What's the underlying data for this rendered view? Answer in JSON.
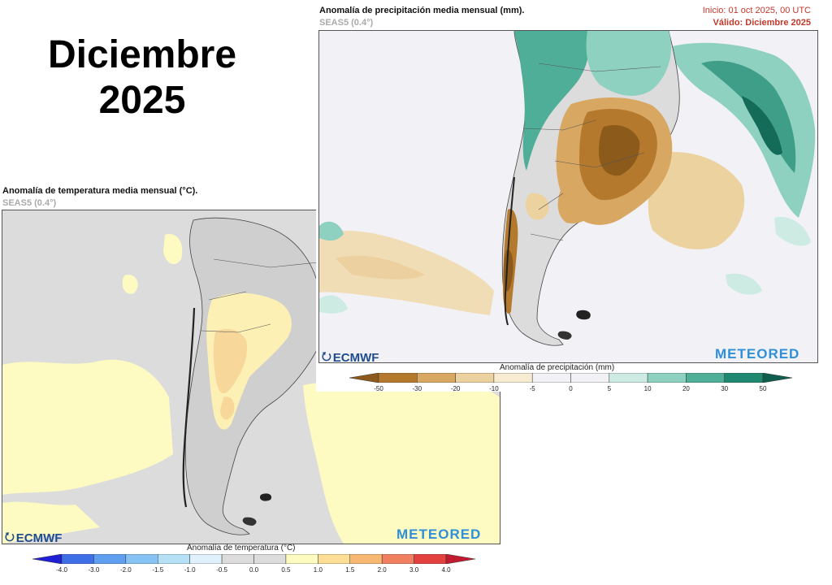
{
  "headline": {
    "line1": "Diciembre",
    "line2": "2025"
  },
  "precip_panel": {
    "title": "Anomalía de precipitación media mensual (mm).",
    "subtitle": "SEAS5 (0.4°)",
    "init": "Inicio: 01 oct 2025, 00 UTC",
    "valid": "Válido: Diciembre 2025",
    "logo_left": "ECMWF",
    "logo_right": "METEORED",
    "colorbar_title": "Anomalía de precipitación (mm)",
    "ticks": [
      "-50",
      "-30",
      "-20",
      "-10",
      "-5",
      "0",
      "5",
      "10",
      "20",
      "30",
      "50"
    ],
    "colors": [
      "#8c5a1a",
      "#b5792e",
      "#d8a862",
      "#ecd29f",
      "#f7ebd2",
      "#f1f1f6",
      "#f1f1f6",
      "#cdebe3",
      "#8fd1c0",
      "#4fae98",
      "#1f8870",
      "#0f5e4d"
    ]
  },
  "temp_panel": {
    "title": "Anomalía de temperatura media mensual (°C).",
    "subtitle": "SEAS5 (0.4°)",
    "logo_left": "ECMWF",
    "logo_right": "METEORED",
    "colorbar_title": "Anomalía de temperatura (°C)",
    "ticks": [
      "-4.0",
      "-3.0",
      "-2.0",
      "-1.5",
      "-1.0",
      "-0.5",
      "0.0",
      "0.5",
      "1.0",
      "1.5",
      "2.0",
      "3.0",
      "4.0"
    ],
    "colors": [
      "#1f1fd6",
      "#3f6fe6",
      "#5e9ff0",
      "#86c3f3",
      "#b6e0f6",
      "#e0f1fb",
      "#dcdcdc",
      "#dcdcdc",
      "#fefbc0",
      "#fcdf95",
      "#f7b873",
      "#f08060",
      "#e34040",
      "#c21a30"
    ]
  }
}
